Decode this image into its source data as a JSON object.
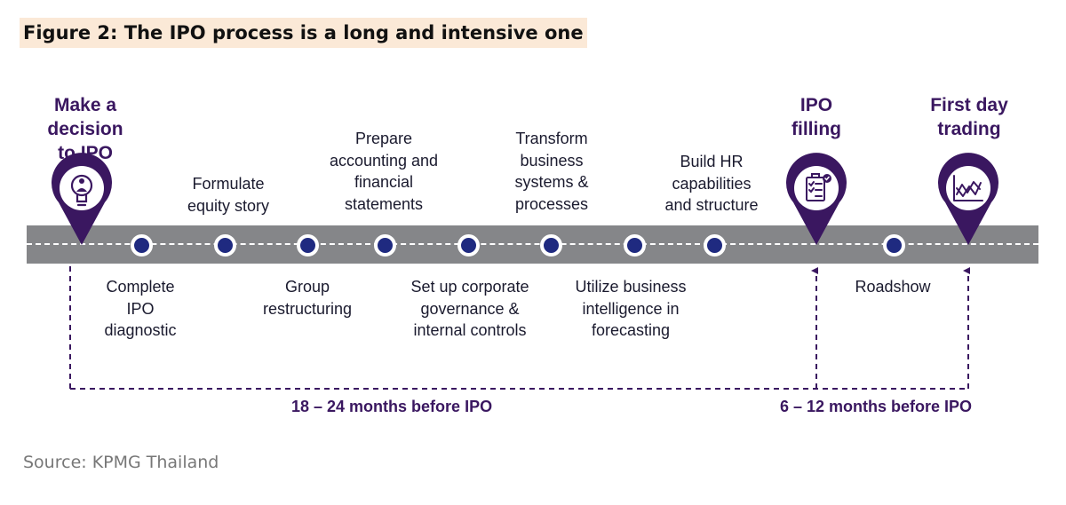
{
  "title": "Figure 2: The IPO process is a long and intensive one",
  "source": "Source: KPMG Thailand",
  "milestones": [
    {
      "lines": [
        "Make a",
        "decision",
        "to IPO"
      ],
      "icon": "lightbulb-person-icon"
    },
    {
      "lines": [
        "IPO",
        "filling"
      ],
      "icon": "checklist-icon"
    },
    {
      "lines": [
        "First day",
        "trading"
      ],
      "icon": "stock-chart-icon"
    }
  ],
  "steps_above": [
    {
      "lines": [
        "Formulate",
        "equity story"
      ]
    },
    {
      "lines": [
        "Prepare",
        "accounting and",
        "financial",
        "statements"
      ]
    },
    {
      "lines": [
        "Transform",
        "business",
        "systems &",
        "processes"
      ]
    },
    {
      "lines": [
        "Build HR",
        "capabilities",
        "and structure"
      ]
    }
  ],
  "steps_below": [
    {
      "lines": [
        "Complete",
        "IPO",
        "diagnostic"
      ]
    },
    {
      "lines": [
        "Group",
        "restructuring"
      ]
    },
    {
      "lines": [
        "Set up corporate",
        "governance &",
        "internal controls"
      ]
    },
    {
      "lines": [
        "Utilize business",
        "intelligence in",
        "forecasting"
      ]
    },
    {
      "lines": [
        "Roadshow"
      ]
    }
  ],
  "periods": {
    "pre": "18 – 24 months before IPO",
    "post": "6 – 12 months before IPO"
  },
  "colors": {
    "road": "#858689",
    "dot": "#1f2a80",
    "pin": "#3a1760",
    "text": "#1a1a2e",
    "highlight": "#fbe9d7"
  }
}
